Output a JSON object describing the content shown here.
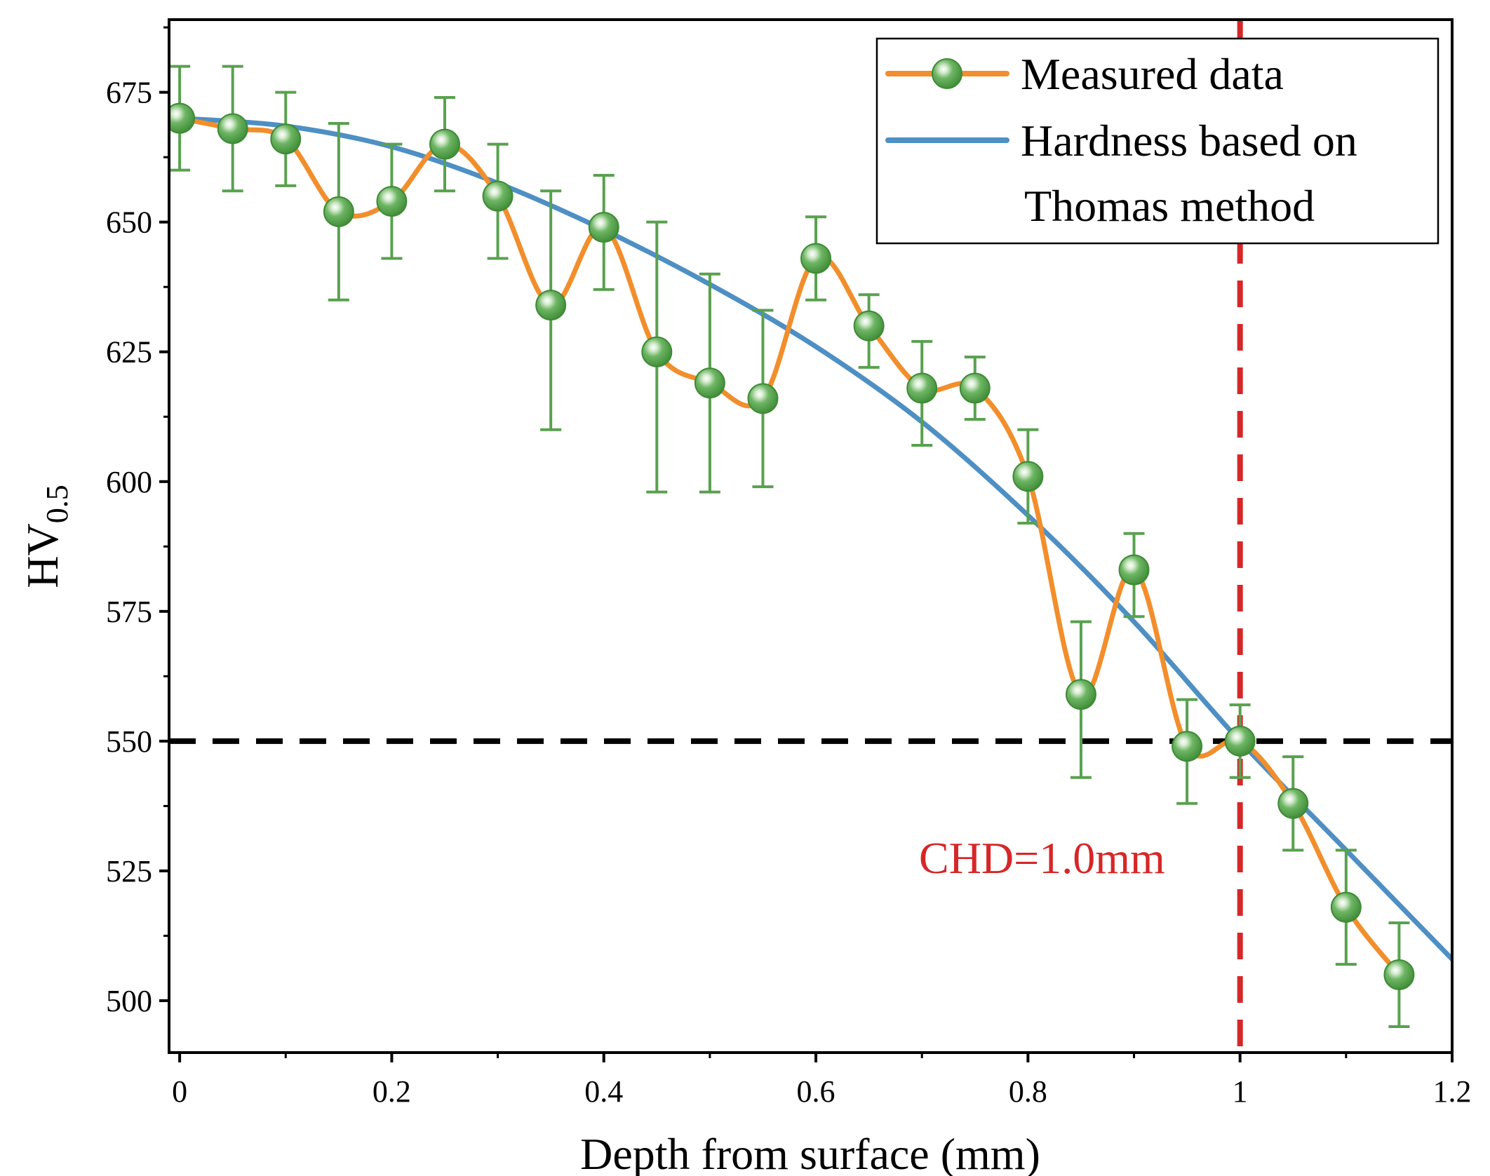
{
  "chart_data": {
    "type": "line",
    "xlabel": "Depth from surface (mm)",
    "ylabel_main": "HV",
    "ylabel_sub": "0.5",
    "xlim": [
      -0.01,
      1.2
    ],
    "ylim": [
      490,
      689
    ],
    "xticks": [
      0,
      0.2,
      0.4,
      0.6,
      0.8,
      1.0,
      1.2
    ],
    "xtick_labels": [
      "0",
      "0.2",
      "0.4",
      "0.6",
      "0.8",
      "1",
      "1.2"
    ],
    "yticks": [
      500,
      525,
      550,
      575,
      600,
      625,
      650,
      675
    ],
    "ytick_labels": [
      "500",
      "525",
      "550",
      "575",
      "600",
      "625",
      "650",
      "675"
    ],
    "series": [
      {
        "name": "Measured data",
        "style": "smoothed-line-with-markers-and-error-bars",
        "line_color": "#F28E2B",
        "marker_color": "#59A14F",
        "x": [
          0,
          0.05,
          0.1,
          0.15,
          0.2,
          0.25,
          0.3,
          0.35,
          0.4,
          0.45,
          0.5,
          0.55,
          0.6,
          0.65,
          0.7,
          0.75,
          0.8,
          0.85,
          0.9,
          0.95,
          1.0,
          1.05,
          1.1,
          1.15
        ],
        "y": [
          670,
          668,
          666,
          652,
          654,
          665,
          655,
          634,
          649,
          625,
          619,
          616,
          643,
          630,
          618,
          618,
          601,
          559,
          583,
          549,
          550,
          538,
          518,
          505
        ],
        "error_upper": [
          680,
          680,
          675,
          669,
          665,
          674,
          665,
          656,
          659,
          650,
          640,
          633,
          651,
          636,
          627,
          624,
          610,
          573,
          590,
          558,
          557,
          547,
          529,
          515
        ],
        "error_lower": [
          660,
          656,
          657,
          635,
          643,
          656,
          643,
          610,
          637,
          598,
          598,
          599,
          635,
          622,
          607,
          612,
          592,
          543,
          574,
          538,
          543,
          529,
          507,
          495
        ]
      },
      {
        "name_lines": [
          "Hardness based on",
          "Thomas method"
        ],
        "style": "line",
        "line_color": "#4E8FC4",
        "x": [
          0,
          0.1,
          0.2,
          0.3,
          0.4,
          0.5,
          0.6,
          0.7,
          0.8,
          0.9,
          1.0,
          1.1,
          1.2
        ],
        "y": [
          670,
          668.5,
          664.5,
          657.5,
          648.5,
          638,
          626,
          611.5,
          593.5,
          573,
          550,
          529,
          508
        ]
      }
    ],
    "reference_lines": [
      {
        "orientation": "horizontal",
        "value": 550,
        "color": "#000000",
        "style": "dashed"
      },
      {
        "orientation": "vertical",
        "value": 1.0,
        "color": "#D62728",
        "style": "dashed"
      }
    ],
    "annotations": [
      {
        "text": "CHD=1.0mm",
        "color": "#D62728"
      }
    ],
    "legend": {
      "placement": "top-right",
      "entries": [
        "Measured data",
        "Hardness based on",
        "Thomas method"
      ]
    }
  }
}
